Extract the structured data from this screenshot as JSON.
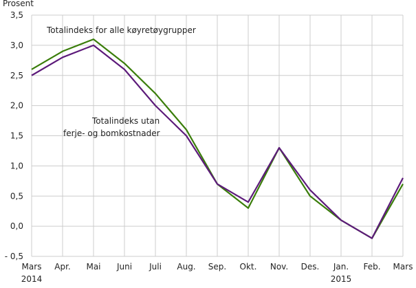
{
  "chart_data": {
    "type": "line",
    "title": "",
    "ylabel": "Prosent",
    "xlabel": "",
    "ylim": [
      -0.5,
      3.5
    ],
    "yticks": [
      -0.5,
      0.0,
      0.5,
      1.0,
      1.5,
      2.0,
      2.5,
      3.0,
      3.5
    ],
    "ytick_labels": [
      "- 0,5",
      "0,0",
      "0,5",
      "1,0",
      "1,5",
      "2,0",
      "2,5",
      "3,0",
      "3,5"
    ],
    "grid": true,
    "categories": [
      "Mars",
      "Apr.",
      "Mai",
      "Juni",
      "Juli",
      "Aug.",
      "Sep.",
      "Okt.",
      "Nov.",
      "Des.",
      "Jan.",
      "Feb.",
      "Mars"
    ],
    "year_labels": [
      {
        "index": 0,
        "label": "2014"
      },
      {
        "index": 10,
        "label": "2015"
      }
    ],
    "series": [
      {
        "name": "Totalindeks for alle køyretøygrupper",
        "color": "#3a7d0a",
        "values": [
          2.6,
          2.9,
          3.1,
          2.7,
          2.2,
          1.6,
          0.7,
          0.3,
          1.3,
          0.5,
          0.1,
          -0.2,
          0.7
        ]
      },
      {
        "name": "Totalindeks utan ferje- og bomkostnader",
        "name_lines": [
          "Totalindeks utan",
          "ferje- og bomkostnader"
        ],
        "color": "#5c1a7a",
        "values": [
          2.5,
          2.8,
          3.0,
          2.6,
          2.0,
          1.5,
          0.7,
          0.4,
          1.3,
          0.6,
          0.1,
          -0.2,
          0.8
        ]
      }
    ]
  }
}
